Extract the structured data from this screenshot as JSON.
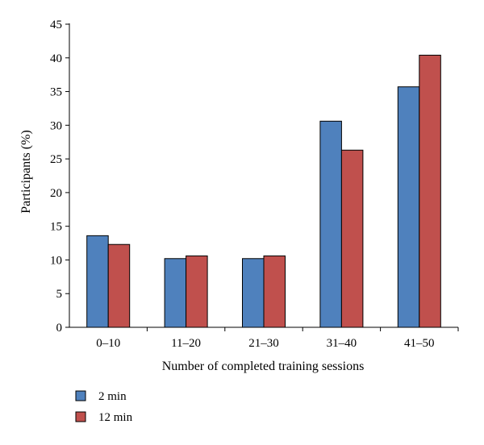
{
  "chart_data": {
    "type": "bar",
    "title": "",
    "xlabel": "Number of completed training sessions",
    "ylabel": "Participants (%)",
    "ylim": [
      0,
      45
    ],
    "yticks": [
      0,
      5,
      10,
      15,
      20,
      25,
      30,
      35,
      40,
      45
    ],
    "categories": [
      "0–10",
      "11–20",
      "21–30",
      "31–40",
      "41–50"
    ],
    "series": [
      {
        "name": "2 min",
        "color": "#4F81BD",
        "values": [
          13.6,
          10.2,
          10.2,
          30.6,
          35.7
        ]
      },
      {
        "name": "12 min",
        "color": "#C0504D",
        "values": [
          12.3,
          10.6,
          10.6,
          26.3,
          40.4
        ]
      }
    ],
    "grid": false,
    "legend_position": "bottom-left"
  }
}
